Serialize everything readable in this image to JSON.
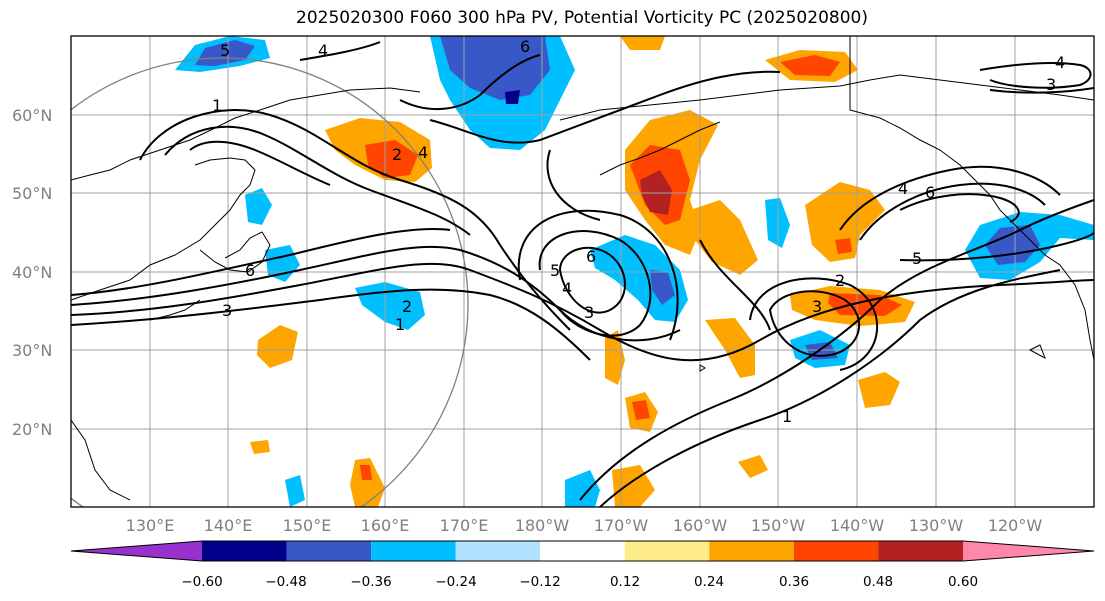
{
  "title": "2025020300 F060 300 hPa PV, Potential Vorticity PC (2025020800)",
  "map": {
    "lat_labels": [
      "60°N",
      "50°N",
      "40°N",
      "30°N",
      "20°N"
    ],
    "lon_labels": [
      "130°E",
      "140°E",
      "150°E",
      "160°E",
      "170°E",
      "180°W",
      "170°W",
      "160°W",
      "150°W",
      "140°W",
      "130°W",
      "120°W"
    ],
    "contour_labels": [
      "1",
      "2",
      "3",
      "4",
      "5",
      "6"
    ],
    "gridlines": true
  },
  "colorbar": {
    "ticks": [
      "−0.60",
      "−0.48",
      "−0.36",
      "−0.24",
      "−0.12",
      "0.12",
      "0.24",
      "0.36",
      "0.48",
      "0.60"
    ],
    "colors": [
      "#9932cc",
      "#00008b",
      "#3858c8",
      "#00bfff",
      "#b0e2ff",
      "#ffffff",
      "#ffec8b",
      "#ffa500",
      "#ff4500",
      "#b22222",
      "#ff88aa"
    ]
  }
}
